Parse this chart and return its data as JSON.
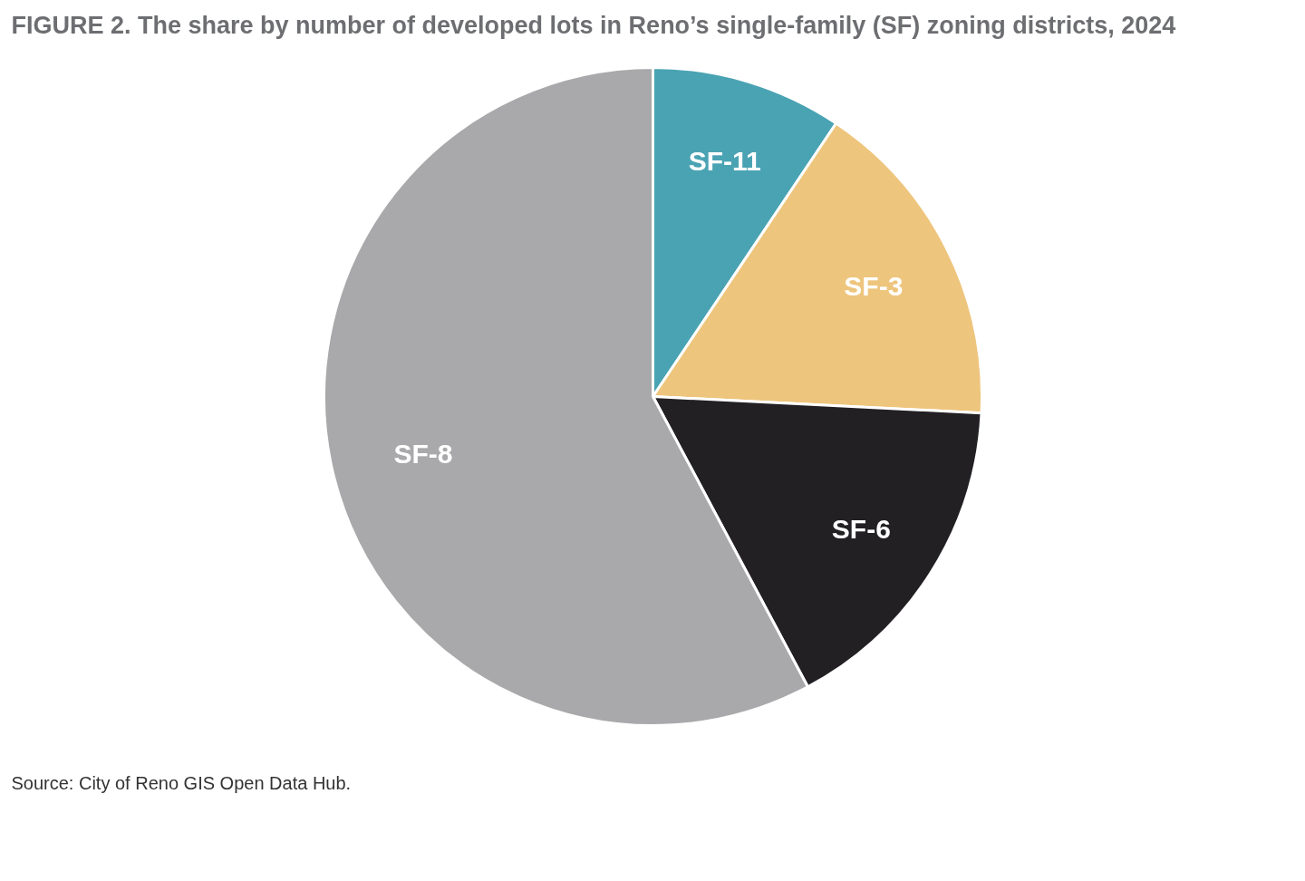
{
  "chart_data": {
    "type": "pie",
    "title": "FIGURE 2. The share by number of developed lots in Reno’s single-family (SF) zoning districts, 2024",
    "categories": [
      "SF-11",
      "SF-3",
      "SF-6",
      "SF-8"
    ],
    "values": [
      9.4,
      16.4,
      16.4,
      57.8
    ],
    "colors": [
      "#4aa3b3",
      "#eec57d",
      "#222023",
      "#a9a9ab"
    ],
    "annotations": [
      "Source: City of Reno GIS Open Data Hub."
    ]
  }
}
